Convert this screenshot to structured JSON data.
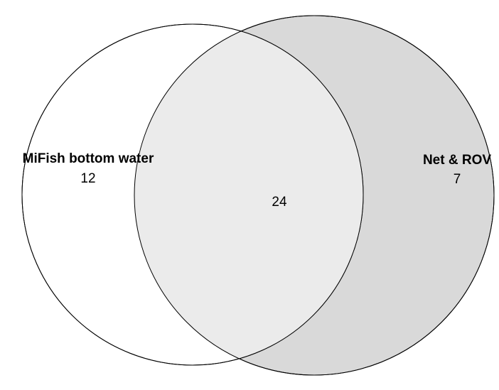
{
  "venn": {
    "sets": [
      {
        "name": "MiFish bottom water",
        "unique_count": "12",
        "fill": "#ffffff"
      },
      {
        "name": "Net & ROV",
        "unique_count": "7",
        "fill": "#d9d9d9"
      }
    ],
    "intersection": {
      "count": "24",
      "fill": "#ebebeb"
    },
    "outline_color": "#000000"
  }
}
